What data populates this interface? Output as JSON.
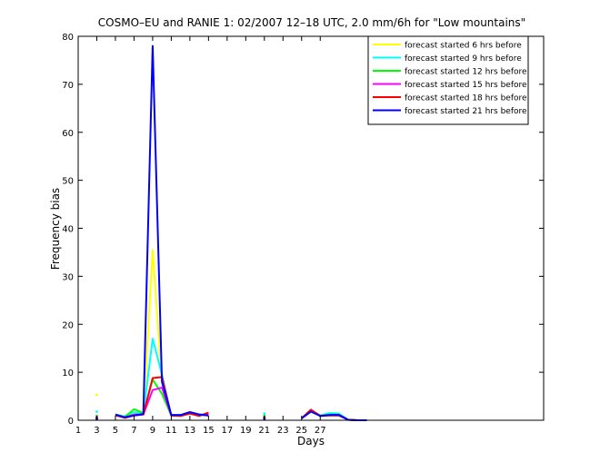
{
  "chart_data": {
    "type": "line",
    "title": "COSMO–EU and RANIE 1: 02/2007 12–18 UTC, 2.0 mm/6h for \"Low mountains\"",
    "xlabel": "Days",
    "ylabel": "Frequency bias",
    "xlim": [
      1,
      51
    ],
    "ylim": [
      0,
      80
    ],
    "xticks": [
      1,
      3,
      5,
      7,
      9,
      11,
      13,
      15,
      17,
      19,
      21,
      23,
      25,
      27
    ],
    "yticks": [
      0,
      10,
      20,
      30,
      40,
      50,
      60,
      70,
      80
    ],
    "grid": false,
    "legend_position": "top-right",
    "series": [
      {
        "name": "forecast started 6 hrs before",
        "color": "#ffff00",
        "segments": [
          [
            [
              5,
              1.2
            ],
            [
              6,
              0.8
            ],
            [
              7,
              1.6
            ],
            [
              8,
              1.3
            ],
            [
              9,
              35.5
            ],
            [
              10,
              8.0
            ],
            [
              11,
              1.0
            ],
            [
              12,
              1.0
            ],
            [
              13,
              1.5
            ],
            [
              14,
              1.2
            ],
            [
              15,
              1.2
            ]
          ],
          [
            [
              25,
              0.4
            ],
            [
              26,
              2.0
            ],
            [
              27,
              0.9
            ],
            [
              28,
              1.3
            ],
            [
              29,
              1.2
            ],
            [
              30,
              0.1
            ],
            [
              31,
              0.0
            ],
            [
              32,
              0.0
            ]
          ]
        ],
        "points": [
          [
            3,
            5.3
          ]
        ]
      },
      {
        "name": "forecast started 9 hrs before",
        "color": "#00ffff",
        "segments": [
          [
            [
              5,
              1.2
            ],
            [
              6,
              0.8
            ],
            [
              7,
              1.7
            ],
            [
              8,
              1.3
            ],
            [
              9,
              17.0
            ],
            [
              10,
              9.5
            ],
            [
              11,
              1.0
            ],
            [
              12,
              1.0
            ],
            [
              13,
              1.6
            ],
            [
              14,
              1.2
            ],
            [
              15,
              1.2
            ]
          ],
          [
            [
              25,
              0.4
            ],
            [
              26,
              2.0
            ],
            [
              27,
              1.0
            ],
            [
              28,
              1.5
            ],
            [
              29,
              1.4
            ],
            [
              30,
              0.1
            ],
            [
              31,
              0.0
            ],
            [
              32,
              0.0
            ]
          ]
        ],
        "points": [
          [
            3,
            1.8
          ],
          [
            21,
            1.4
          ]
        ]
      },
      {
        "name": "forecast started 12 hrs before",
        "color": "#00ff00",
        "segments": [
          [
            [
              5,
              1.1
            ],
            [
              6,
              0.7
            ],
            [
              7,
              2.3
            ],
            [
              8,
              1.5
            ],
            [
              9,
              8.5
            ],
            [
              10,
              5.5
            ],
            [
              11,
              1.0
            ],
            [
              12,
              1.0
            ],
            [
              13,
              1.6
            ],
            [
              14,
              1.1
            ],
            [
              15,
              1.0
            ]
          ],
          [
            [
              25,
              0.4
            ],
            [
              26,
              2.1
            ],
            [
              27,
              1.0
            ],
            [
              28,
              1.2
            ],
            [
              29,
              1.2
            ],
            [
              30,
              0.1
            ],
            [
              31,
              0.0
            ],
            [
              32,
              0.0
            ]
          ]
        ],
        "points": [
          [
            3,
            0.9
          ],
          [
            21,
            0.9
          ]
        ]
      },
      {
        "name": "forecast started 15 hrs before",
        "color": "#ff00ff",
        "segments": [
          [
            [
              5,
              1.0
            ],
            [
              6,
              0.6
            ],
            [
              7,
              1.2
            ],
            [
              8,
              1.2
            ],
            [
              9,
              6.3
            ],
            [
              10,
              6.8
            ],
            [
              11,
              1.0
            ],
            [
              12,
              1.0
            ],
            [
              13,
              1.5
            ],
            [
              14,
              1.0
            ],
            [
              15,
              1.3
            ]
          ],
          [
            [
              25,
              0.4
            ],
            [
              26,
              2.0
            ],
            [
              27,
              0.9
            ],
            [
              28,
              1.1
            ],
            [
              29,
              1.1
            ],
            [
              30,
              0.1
            ],
            [
              31,
              0.0
            ],
            [
              32,
              0.0
            ]
          ]
        ],
        "points": [
          [
            3,
            0.6
          ],
          [
            21,
            0.6
          ]
        ]
      },
      {
        "name": "forecast started 18 hrs before",
        "color": "#ff0000",
        "segments": [
          [
            [
              5,
              1.1
            ],
            [
              6,
              0.5
            ],
            [
              7,
              1.0
            ],
            [
              8,
              1.2
            ],
            [
              9,
              8.8
            ],
            [
              10,
              9.0
            ],
            [
              11,
              1.0
            ],
            [
              12,
              0.9
            ],
            [
              13,
              1.4
            ],
            [
              14,
              0.9
            ],
            [
              15,
              1.6
            ]
          ],
          [
            [
              25,
              0.4
            ],
            [
              26,
              2.2
            ],
            [
              27,
              0.9
            ],
            [
              28,
              1.0
            ],
            [
              29,
              1.0
            ],
            [
              30,
              0.1
            ],
            [
              31,
              0.0
            ],
            [
              32,
              0.0
            ]
          ]
        ],
        "points": [
          [
            3,
            0.5
          ],
          [
            21,
            0.5
          ]
        ]
      },
      {
        "name": "forecast started 21 hrs before",
        "color": "#0000ff",
        "segments": [
          [
            [
              5,
              1.2
            ],
            [
              6,
              0.6
            ],
            [
              7,
              1.0
            ],
            [
              8,
              1.3
            ],
            [
              9,
              78.0
            ],
            [
              10,
              8.0
            ],
            [
              11,
              1.1
            ],
            [
              12,
              1.1
            ],
            [
              13,
              1.7
            ],
            [
              14,
              1.2
            ],
            [
              15,
              1.0
            ]
          ],
          [
            [
              25,
              0.4
            ],
            [
              26,
              1.8
            ],
            [
              27,
              0.9
            ],
            [
              28,
              1.1
            ],
            [
              29,
              1.1
            ],
            [
              30,
              0.1
            ],
            [
              31,
              0.0
            ],
            [
              32,
              0.0
            ]
          ]
        ],
        "points": [
          [
            3,
            0.3
          ],
          [
            21,
            0.3
          ]
        ]
      }
    ]
  }
}
